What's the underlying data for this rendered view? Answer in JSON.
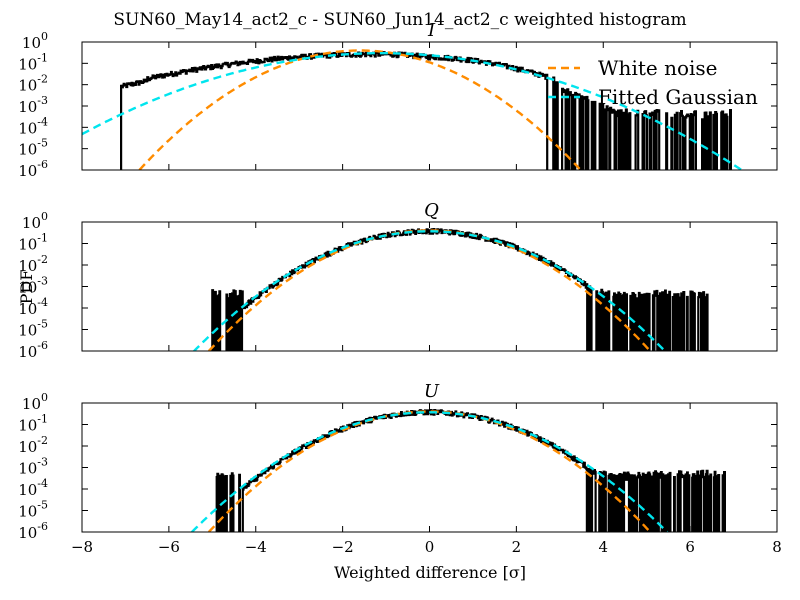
{
  "chart_data": {
    "type": "line",
    "title": "SUN60_May14_act2_c - SUN60_Jun14_act2_c weighted histogram",
    "xlabel": "Weighted difference [σ]",
    "ylabel": "PDF",
    "xlim": [
      -8,
      8
    ],
    "ylim": [
      1e-06,
      1
    ],
    "yscale": "log",
    "x_ticks": [
      -8,
      -6,
      -4,
      -2,
      0,
      2,
      4,
      6,
      8
    ],
    "x_tick_labels": [
      "−8",
      "−6",
      "−4",
      "−2",
      "0",
      "2",
      "4",
      "6",
      "8"
    ],
    "y_tick_exponents": [
      0,
      -1,
      -2,
      -3,
      -4,
      -5,
      -6
    ],
    "legend": {
      "placement": "top-right",
      "entries": [
        "White noise",
        "Fitted Gaussian"
      ]
    },
    "colors": {
      "white_noise": "#ff8c00",
      "fitted_gaussian": "#00e5ee",
      "histogram": "#000000"
    },
    "panels": [
      {
        "title": "I",
        "hist_range": [
          -7.1,
          7.0
        ],
        "series": [
          {
            "name": "White noise",
            "kind": "gaussian",
            "mean": -1.6,
            "sigma": 1.0,
            "amplitude": 0.4
          },
          {
            "name": "Fitted Gaussian",
            "kind": "gaussian",
            "mean": -1.1,
            "sigma": 1.65,
            "amplitude": 0.3
          }
        ]
      },
      {
        "title": "Q",
        "hist_range": [
          -5.0,
          6.4
        ],
        "series": [
          {
            "name": "White noise",
            "kind": "gaussian",
            "mean": 0.0,
            "sigma": 1.0,
            "amplitude": 0.4
          },
          {
            "name": "Fitted Gaussian",
            "kind": "gaussian",
            "mean": 0.0,
            "sigma": 1.07,
            "amplitude": 0.37
          }
        ]
      },
      {
        "title": "U",
        "hist_range": [
          -4.9,
          6.8
        ],
        "series": [
          {
            "name": "White noise",
            "kind": "gaussian",
            "mean": 0.0,
            "sigma": 1.0,
            "amplitude": 0.4
          },
          {
            "name": "Fitted Gaussian",
            "kind": "gaussian",
            "mean": 0.0,
            "sigma": 1.08,
            "amplitude": 0.37
          }
        ]
      }
    ]
  }
}
